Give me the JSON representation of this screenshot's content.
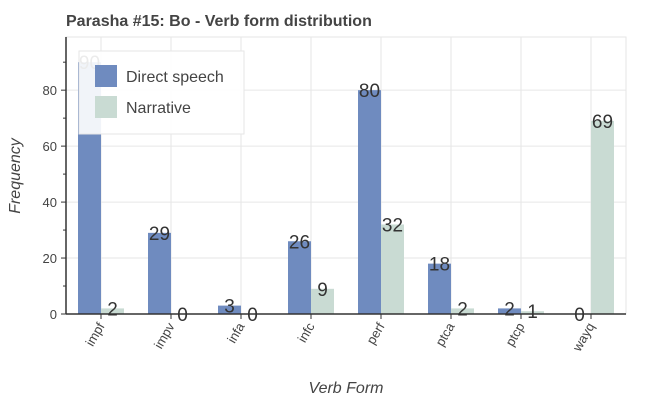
{
  "chart_data": {
    "type": "bar",
    "title": "Parasha #15: Bo - Verb form distribution",
    "xlabel": "Verb Form",
    "ylabel": "Frequency",
    "categories": [
      "impf",
      "impv",
      "infa",
      "infc",
      "perf",
      "ptca",
      "ptcp",
      "wayq"
    ],
    "series": [
      {
        "name": "Direct speech",
        "color": "#6f8bbf",
        "values": [
          90,
          29,
          3,
          26,
          80,
          18,
          2,
          0
        ]
      },
      {
        "name": "Narrative",
        "color": "#c9dbd3",
        "values": [
          2,
          0,
          0,
          9,
          32,
          2,
          1,
          69
        ]
      }
    ],
    "ylim": [
      0,
      99
    ],
    "yticks": [
      0,
      20,
      40,
      60,
      80
    ],
    "grid": true,
    "legend_position": "top-left"
  }
}
